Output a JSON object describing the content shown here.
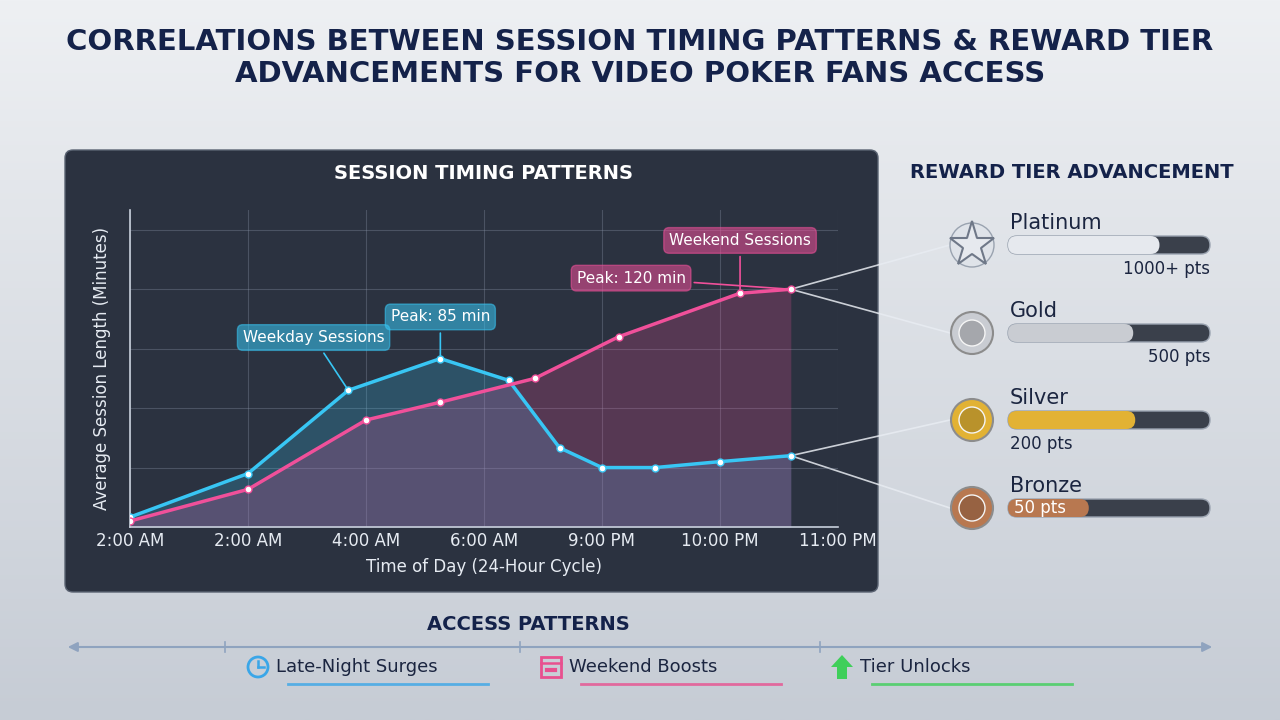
{
  "header": {
    "title": "CORRELATIONS BETWEEN SESSION TIMING PATTERNS & REWARD TIER ADVANCEMENTS FOR VIDEO POKER FANS ACCESS"
  },
  "chart_data": {
    "type": "line",
    "title": "SESSION TIMING PATTERNS",
    "x_label": "Time of Day (24-Hour Cycle)",
    "y_label": "Average Session Length (Minutes)",
    "xlim": [
      0,
      6
    ],
    "xticks": [
      {
        "value": 0,
        "label": "2:00 AM"
      },
      {
        "value": 1,
        "label": "2:00 AM"
      },
      {
        "value": 2,
        "label": "4:00 AM"
      },
      {
        "value": 3,
        "label": "6:00 AM"
      },
      {
        "value": 4,
        "label": "9:00 PM"
      },
      {
        "value": 5,
        "label": "10:00 PM"
      },
      {
        "value": 6,
        "label": "11:00 PM"
      }
    ],
    "ylim": [
      0,
      160
    ],
    "yticks": [
      0,
      30,
      60,
      90,
      120,
      150
    ],
    "grid": true,
    "tick_labels": "x",
    "series": [
      {
        "name": "Weekday Sessions",
        "color": "#38c6f4",
        "marker": "o",
        "x": [
          0,
          1,
          1.85,
          2.63,
          3.21,
          3.64,
          4,
          4.45,
          5,
          5.6
        ],
        "values": [
          5,
          27,
          69,
          85,
          74,
          40,
          30,
          30,
          33,
          36
        ],
        "peak_label": "Peak: 85 min"
      },
      {
        "name": "Weekend Sessions",
        "color": "#f0509a",
        "marker": "o",
        "x": [
          0,
          1,
          2,
          2.63,
          3.43,
          4.14,
          5.17,
          5.6
        ],
        "values": [
          3,
          19,
          54,
          63,
          75,
          96,
          118,
          120
        ],
        "peak_label": "Peak: 120 min"
      }
    ]
  },
  "reward_tiers": {
    "title": "REWARD TIER ADVANCEMENT",
    "tiers": [
      {
        "name": "Platinum",
        "points_label": "1000+ pts",
        "color": "#e6e9ee",
        "progress": 75
      },
      {
        "name": "Gold",
        "points_label": "500 pts",
        "color": "#c9ccd2",
        "progress": 62
      },
      {
        "name": "Silver",
        "points_label": "200 pts",
        "color": "#e2b234",
        "progress": 63
      },
      {
        "name": "Bronze",
        "points_label": "50 pts",
        "color": "#b87850",
        "progress": 40
      }
    ]
  },
  "access_patterns": {
    "title": "ACCESS PATTERNS",
    "items": [
      {
        "name": "Late-Night Surges",
        "color": "#3aa6e8"
      },
      {
        "name": "Weekend Boosts",
        "color": "#e8508f"
      },
      {
        "name": "Tier Unlocks",
        "color": "#3fcf5a"
      }
    ]
  }
}
